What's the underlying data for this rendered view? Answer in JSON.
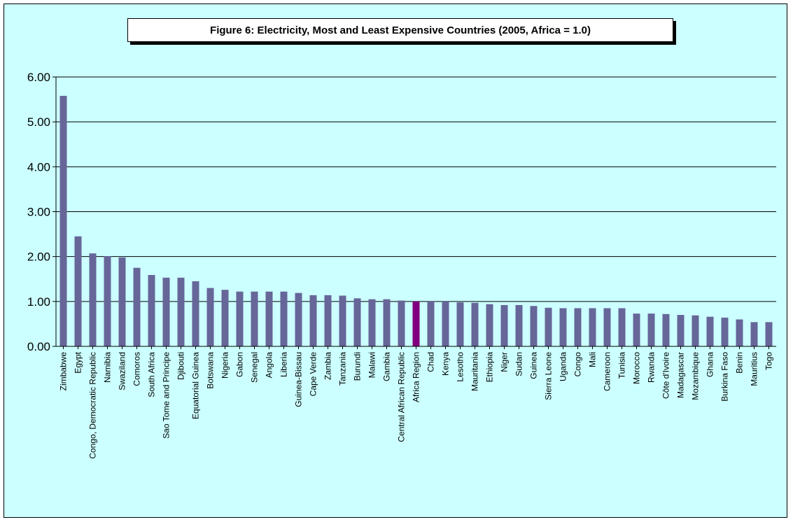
{
  "chart_data": {
    "type": "bar",
    "title": "Figure 6: Electricity, Most and Least Expensive Countries (2005, Africa = 1.0)",
    "xlabel": "",
    "ylabel": "",
    "ylim": [
      0,
      6
    ],
    "yticks": [
      "0.00",
      "1.00",
      "2.00",
      "3.00",
      "4.00",
      "5.00",
      "6.00"
    ],
    "grid": true,
    "bar_color": "#666699",
    "highlight_color": "#800080",
    "highlight_category": "Africa Region",
    "background_color": "#ccffff",
    "categories": [
      "Zimbabwe",
      "Egypt",
      "Congo, Democratic Republic",
      "Namibia",
      "Swaziland",
      "Comoros",
      "South Africa",
      "Sao Tome and Principe",
      "Djibouti",
      "Equatorial Guinea",
      "Botswana",
      "Nigeria",
      "Gabon",
      "Senegal",
      "Angola",
      "Liberia",
      "Guinea-Bissau",
      "Cape Verde",
      "Zambia",
      "Tanzania",
      "Burundi",
      "Malawi",
      "Gambia",
      "Central African Republic",
      "Africa Region",
      "Chad",
      "Kenya",
      "Lesotho",
      "Mauritania",
      "Ethiopia",
      "Niger",
      "Sudan",
      "Guinea",
      "Sierra Leone",
      "Uganda",
      "Congo",
      "Mali",
      "Cameroon",
      "Tunisia",
      "Morocco",
      "Rwanda",
      "Côte d'Ivoire",
      "Madagascar",
      "Mozambique",
      "Ghana",
      "Burkina Faso",
      "Benin",
      "Mauritius",
      "Togo"
    ],
    "values": [
      5.58,
      2.45,
      2.07,
      2.01,
      1.98,
      1.75,
      1.59,
      1.53,
      1.53,
      1.45,
      1.3,
      1.26,
      1.22,
      1.22,
      1.22,
      1.22,
      1.19,
      1.14,
      1.14,
      1.13,
      1.07,
      1.05,
      1.05,
      1.02,
      1.0,
      1.0,
      1.0,
      0.98,
      0.97,
      0.94,
      0.92,
      0.92,
      0.9,
      0.86,
      0.85,
      0.85,
      0.85,
      0.85,
      0.85,
      0.73,
      0.73,
      0.72,
      0.7,
      0.69,
      0.66,
      0.64,
      0.6,
      0.54,
      0.54
    ]
  }
}
